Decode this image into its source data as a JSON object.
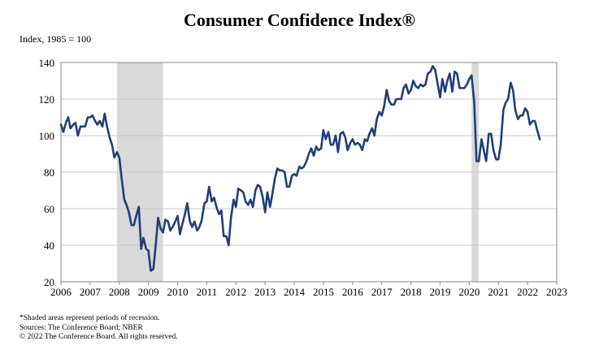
{
  "page": {
    "title": "Consumer Confidence Index®",
    "unit_label": "Index, 1985 = 100",
    "notes": [
      "*Shaded areas represent periods of recession.",
      "Sources: The Conference Board; NBER",
      "© 2022 The Conference Board. All rights reserved."
    ]
  },
  "chart_data": {
    "type": "line",
    "title": "Consumer Confidence Index®",
    "ylabel": "Index, 1985 = 100",
    "xlim": [
      2006,
      2023
    ],
    "ylim": [
      20,
      140
    ],
    "y_ticks": [
      20,
      40,
      60,
      80,
      100,
      120,
      140
    ],
    "x_ticks": [
      2006,
      2007,
      2008,
      2009,
      2010,
      2011,
      2012,
      2013,
      2014,
      2015,
      2016,
      2017,
      2018,
      2019,
      2020,
      2021,
      2022,
      2023
    ],
    "grid": true,
    "line_color": "#1f3f7a",
    "recession_color": "#d9d9d9",
    "recessions": [
      [
        2007.92,
        2009.5
      ],
      [
        2020.08,
        2020.33
      ]
    ],
    "series": [
      {
        "x": [
          2006.0,
          2006.08,
          2006.17,
          2006.25,
          2006.33,
          2006.42,
          2006.5,
          2006.58,
          2006.67,
          2006.75,
          2006.83,
          2006.92,
          2007.0,
          2007.08,
          2007.17,
          2007.25,
          2007.33,
          2007.42,
          2007.5,
          2007.58,
          2007.67,
          2007.75,
          2007.83,
          2007.92,
          2008.0,
          2008.08,
          2008.17,
          2008.25,
          2008.33,
          2008.42,
          2008.5,
          2008.58,
          2008.67,
          2008.75,
          2008.83,
          2008.92,
          2009.0,
          2009.08,
          2009.17,
          2009.25,
          2009.33,
          2009.42,
          2009.5,
          2009.58,
          2009.67,
          2009.75,
          2009.83,
          2009.92,
          2010.0,
          2010.08,
          2010.17,
          2010.25,
          2010.33,
          2010.42,
          2010.5,
          2010.58,
          2010.67,
          2010.75,
          2010.83,
          2010.92,
          2011.0,
          2011.08,
          2011.17,
          2011.25,
          2011.33,
          2011.42,
          2011.5,
          2011.58,
          2011.67,
          2011.75,
          2011.83,
          2011.92,
          2012.0,
          2012.08,
          2012.17,
          2012.25,
          2012.33,
          2012.42,
          2012.5,
          2012.58,
          2012.67,
          2012.75,
          2012.83,
          2012.92,
          2013.0,
          2013.08,
          2013.17,
          2013.25,
          2013.33,
          2013.42,
          2013.5,
          2013.58,
          2013.67,
          2013.75,
          2013.83,
          2013.92,
          2014.0,
          2014.08,
          2014.17,
          2014.25,
          2014.33,
          2014.42,
          2014.5,
          2014.58,
          2014.67,
          2014.75,
          2014.83,
          2014.92,
          2015.0,
          2015.08,
          2015.17,
          2015.25,
          2015.33,
          2015.42,
          2015.5,
          2015.58,
          2015.67,
          2015.75,
          2015.83,
          2015.92,
          2016.0,
          2016.08,
          2016.17,
          2016.25,
          2016.33,
          2016.42,
          2016.5,
          2016.58,
          2016.67,
          2016.75,
          2016.83,
          2016.92,
          2017.0,
          2017.08,
          2017.17,
          2017.25,
          2017.33,
          2017.42,
          2017.5,
          2017.58,
          2017.67,
          2017.75,
          2017.83,
          2017.92,
          2018.0,
          2018.08,
          2018.17,
          2018.25,
          2018.33,
          2018.42,
          2018.5,
          2018.58,
          2018.67,
          2018.75,
          2018.83,
          2018.92,
          2019.0,
          2019.08,
          2019.17,
          2019.25,
          2019.33,
          2019.42,
          2019.5,
          2019.58,
          2019.67,
          2019.75,
          2019.83,
          2019.92,
          2020.0,
          2020.08,
          2020.17,
          2020.25,
          2020.33,
          2020.42,
          2020.5,
          2020.58,
          2020.67,
          2020.75,
          2020.83,
          2020.92,
          2021.0,
          2021.08,
          2021.17,
          2021.25,
          2021.33,
          2021.42,
          2021.5,
          2021.58,
          2021.67,
          2021.75,
          2021.83,
          2021.92,
          2022.0,
          2022.08,
          2022.17,
          2022.25,
          2022.33,
          2022.42
        ],
        "values": [
          106,
          102,
          107,
          110,
          104,
          106,
          107,
          100,
          105,
          105,
          105,
          110,
          110,
          111,
          108,
          106,
          108,
          105,
          112,
          105,
          99,
          95,
          88,
          91,
          88,
          77,
          65,
          62,
          58,
          51,
          51,
          56,
          61,
          38,
          44,
          38,
          37,
          26,
          27,
          40,
          55,
          49,
          47,
          54,
          53,
          48,
          50,
          53,
          56,
          46,
          52,
          57,
          63,
          53,
          50,
          53,
          48,
          50,
          54,
          63,
          64,
          72,
          64,
          66,
          61,
          57,
          59,
          45,
          45,
          40,
          55,
          65,
          61,
          71,
          70,
          69,
          64,
          62,
          65,
          61,
          70,
          73,
          72,
          66,
          58,
          69,
          61,
          68,
          76,
          82,
          81,
          81,
          80,
          72,
          72,
          78,
          79,
          78,
          83,
          82,
          83,
          86,
          90,
          93,
          89,
          94,
          92,
          93,
          103,
          98,
          102,
          95,
          95,
          100,
          91,
          101,
          102,
          99,
          92,
          96,
          98,
          95,
          96,
          95,
          92,
          98,
          97,
          101,
          104,
          100,
          109,
          113,
          111,
          116,
          125,
          119,
          117,
          117,
          120,
          120,
          120,
          126,
          128,
          123,
          125,
          130,
          127,
          126,
          128,
          127,
          128,
          134,
          135,
          138,
          136,
          128,
          121,
          131,
          124,
          130,
          134,
          124,
          135,
          134,
          126,
          126,
          126,
          128,
          131,
          133,
          118,
          86,
          86,
          98,
          92,
          86,
          101,
          101,
          92,
          87,
          87,
          95,
          114,
          118,
          120,
          129,
          125,
          114,
          109,
          111,
          111,
          115,
          113,
          106,
          108,
          108,
          103,
          98
        ]
      }
    ]
  }
}
